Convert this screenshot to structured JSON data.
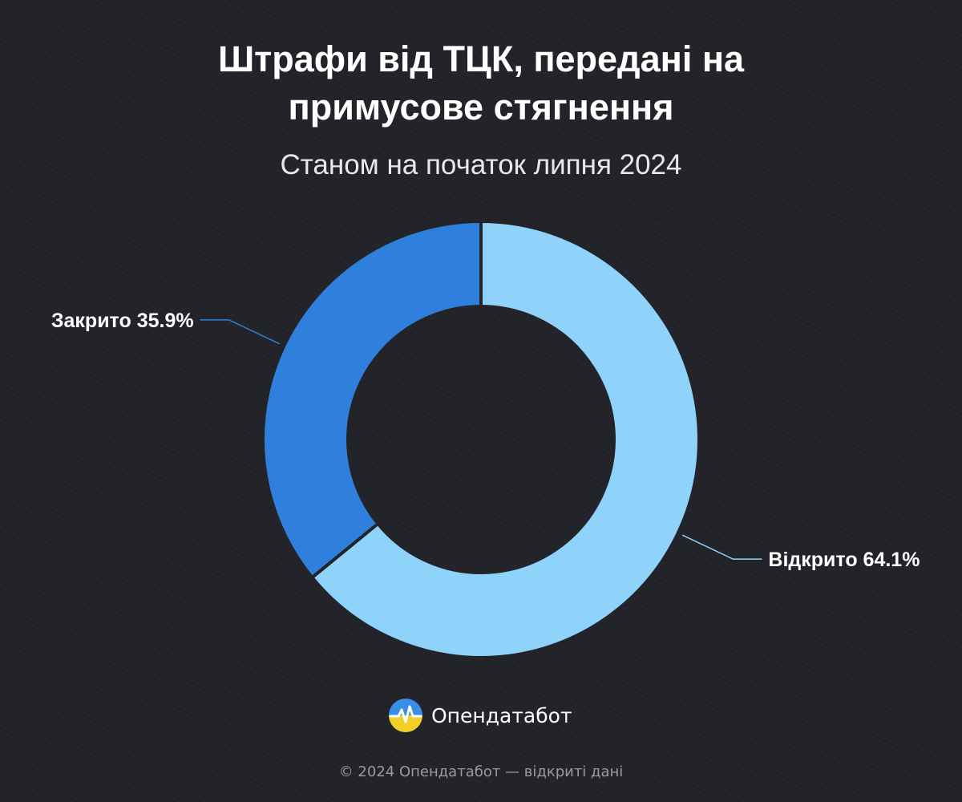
{
  "header": {
    "title_line1": "Штрафи від ТЦК, передані на",
    "title_line2": "примусове стягнення",
    "subtitle": "Станом на початок липня 2024"
  },
  "chart_data": {
    "type": "pie",
    "style": "donut",
    "title": "Штрафи від ТЦК, передані на примусове стягнення",
    "subtitle": "Станом на початок липня 2024",
    "categories": [
      "Відкрито",
      "Закрито"
    ],
    "values": [
      64.1,
      35.9
    ],
    "unit": "%",
    "labels": [
      "Відкрито 64.1%",
      "Закрито 35.9%"
    ],
    "colors": [
      "#8fd3fb",
      "#2e80dc"
    ],
    "start": "12 o'clock, clockwise",
    "legend": "none (labels on leader lines)"
  },
  "brand": {
    "name": "Опендатабот",
    "logo_icon": "opendatabot-logo-icon",
    "logo_colors": [
      "#3b8ee8",
      "#f3cf2a"
    ]
  },
  "footer": {
    "text": "© 2024 Опендатабот — відкриті дані"
  }
}
